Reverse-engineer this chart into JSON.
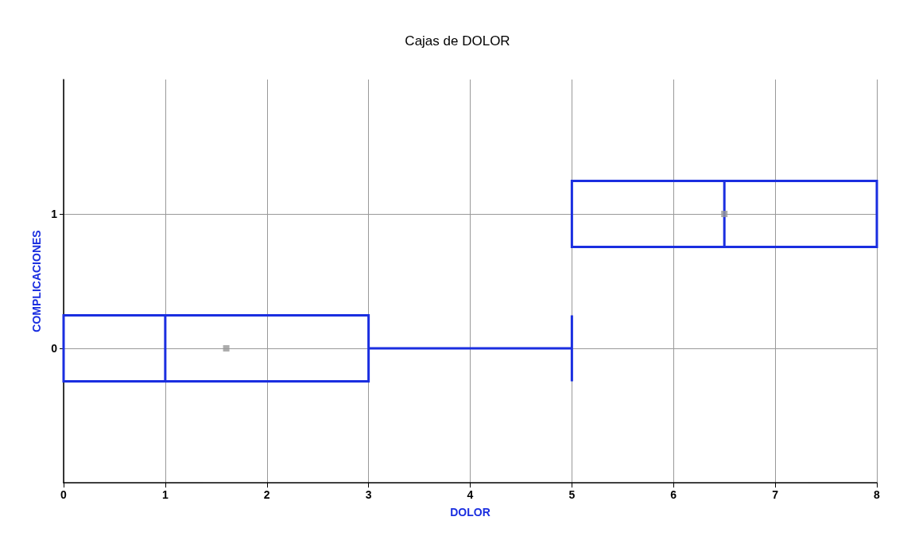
{
  "chart_data": {
    "type": "box",
    "title": "Cajas de DOLOR",
    "xlabel": "DOLOR",
    "ylabel": "COMPLICACIONES",
    "orientation": "horizontal",
    "categories": [
      "1",
      "0"
    ],
    "boxes": [
      {
        "low": 5,
        "q1": 5,
        "median": 6.5,
        "q3": 8,
        "high": 8,
        "mean": 6.5
      },
      {
        "low": 0,
        "q1": 0,
        "median": 1,
        "q3": 3,
        "high": 5,
        "mean": 1.6
      }
    ],
    "color": "#1a2ee0",
    "xlim": [
      0,
      8
    ],
    "xticks": [
      0,
      1,
      2,
      3,
      4,
      5,
      6,
      7,
      8
    ],
    "grid": true
  }
}
